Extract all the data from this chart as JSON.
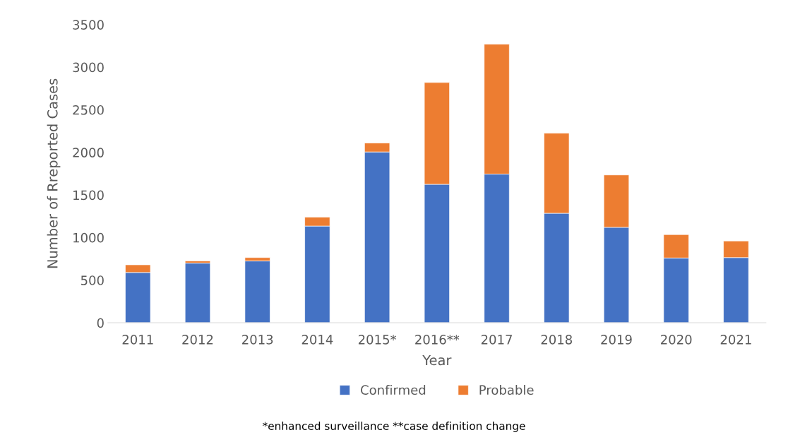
{
  "chart_data": {
    "type": "bar",
    "stacked": true,
    "categories": [
      "2011",
      "2012",
      "2013",
      "2014",
      "2015*",
      "2016**",
      "2017",
      "2018",
      "2019",
      "2020",
      "2021"
    ],
    "series": [
      {
        "name": "Confirmed",
        "color": "#4472c4",
        "values": [
          590,
          700,
          725,
          1135,
          2005,
          1625,
          1745,
          1285,
          1120,
          760,
          765
        ]
      },
      {
        "name": "Probable",
        "color": "#ed7d31",
        "values": [
          90,
          25,
          40,
          105,
          105,
          1195,
          1525,
          940,
          615,
          275,
          195
        ]
      }
    ],
    "xlabel": "Year",
    "ylabel": "Number of Rreported Cases",
    "ylim": [
      0,
      3500
    ],
    "yticks": [
      0,
      500,
      1000,
      1500,
      2000,
      2500,
      3000,
      3500
    ],
    "grid": false,
    "legend": "bottom",
    "annotations": [
      "*enhanced surveillance **case definition change"
    ]
  }
}
